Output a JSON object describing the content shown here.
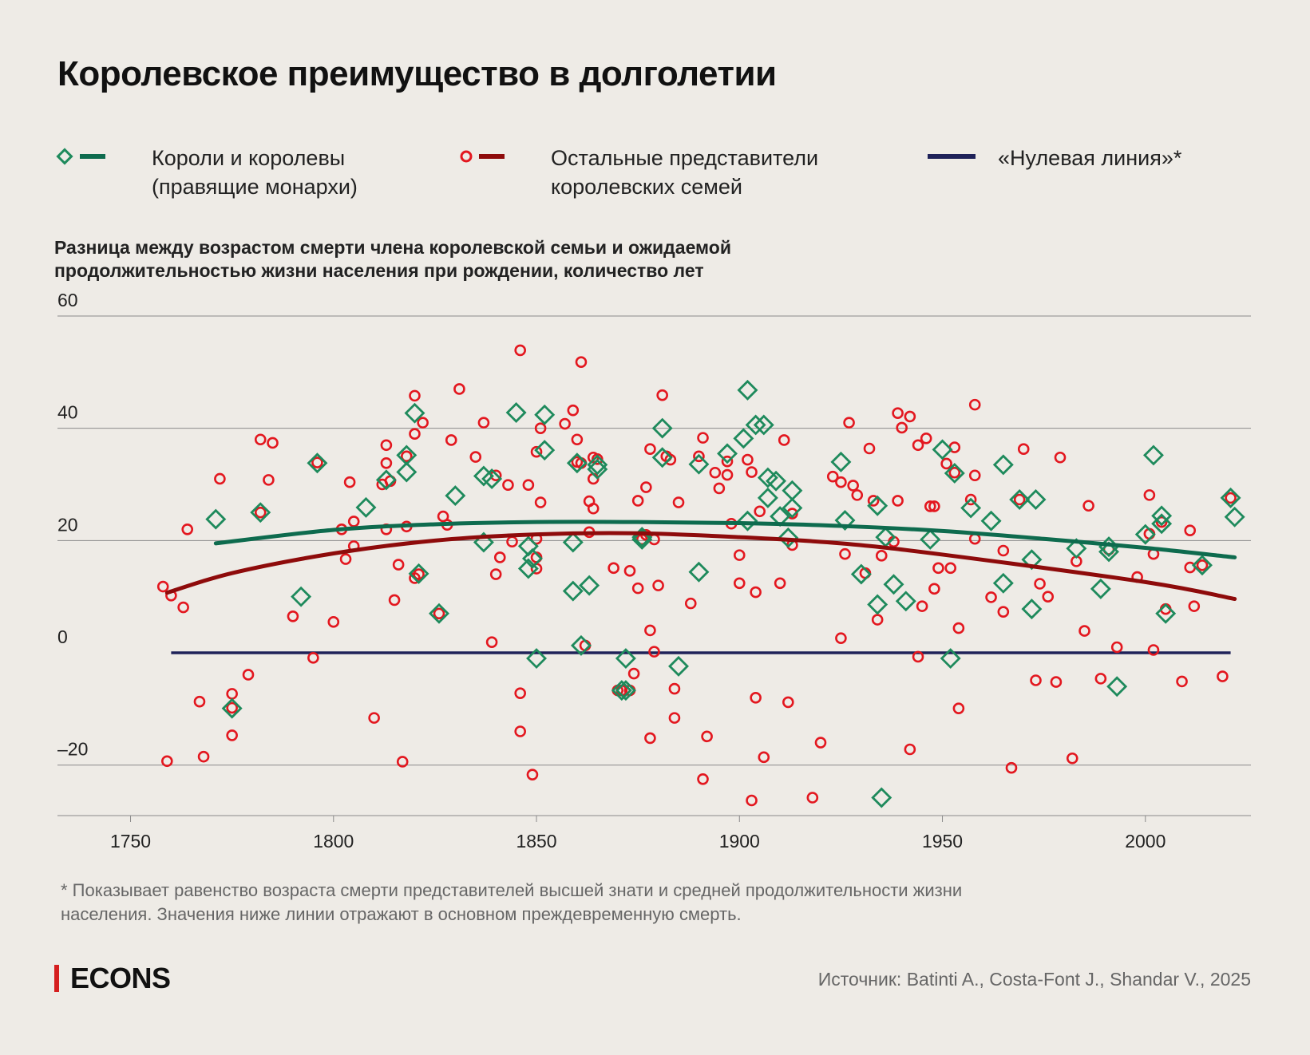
{
  "title": "Королевское преимущество в долголетии",
  "legend": {
    "monarchs": {
      "line1": "Короли и королевы",
      "line2": "(правящие монархи)"
    },
    "others": {
      "line1": "Остальные представители",
      "line2": "королевских семей"
    },
    "zero": {
      "line1": "«Нулевая линия»*"
    }
  },
  "y_axis_title": {
    "line1": "Разница между возрастом смерти члена королевской семьи и ожидаемой",
    "line2": "продолжительностью жизни населения при рождении, количество лет"
  },
  "footnote": {
    "line1": "* Показывает равенство возраста смерти представителей высшей знати и средней продолжительности жизни",
    "line2": "населения. Значения ниже линии отражают в основном преждевременную смерть."
  },
  "brand": "ECONS",
  "source": "Источник: Batinti A., Costa-Font J., Shandar V., 2025",
  "colors": {
    "background": "#eeebe6",
    "monarchs": "#0e6b4e",
    "monarch_marker": "#1e8a5c",
    "others": "#8e0b0b",
    "others_marker": "#e3171f",
    "zero_line": "#1f2259",
    "grid": "#8a8a8a"
  },
  "chart_data": {
    "type": "scatter",
    "xlim": [
      1732,
      2026
    ],
    "ylim": [
      -29,
      60
    ],
    "x_ticks": [
      1750,
      1800,
      1850,
      1900,
      1950,
      2000
    ],
    "y_ticks": [
      60,
      40,
      20,
      0,
      -20
    ],
    "y_tick_labels": [
      "60",
      "40",
      "20",
      "0",
      "–20"
    ],
    "series": [
      {
        "name": "Короли и королевы (правящие монархи)",
        "marker": "diamond",
        "points": [
          [
            1771,
            23.8
          ],
          [
            1775,
            -9.9
          ],
          [
            1782,
            25
          ],
          [
            1796,
            33.8
          ],
          [
            1792,
            10
          ],
          [
            1808,
            25.9
          ],
          [
            1813,
            30.8
          ],
          [
            1818,
            35.2
          ],
          [
            1818,
            32.2
          ],
          [
            1820,
            42.7
          ],
          [
            1821,
            14.1
          ],
          [
            1826,
            7
          ],
          [
            1830,
            28
          ],
          [
            1837,
            19.7
          ],
          [
            1837,
            31.5
          ],
          [
            1839,
            31
          ],
          [
            1845,
            42.8
          ],
          [
            1848,
            19
          ],
          [
            1848,
            15
          ],
          [
            1849,
            16.8
          ],
          [
            1850,
            -1
          ],
          [
            1852,
            42.4
          ],
          [
            1852,
            36.1
          ],
          [
            1859,
            19.7
          ],
          [
            1859,
            11
          ],
          [
            1860,
            33.8
          ],
          [
            1861,
            1.3
          ],
          [
            1863,
            12
          ],
          [
            1865,
            33.5
          ],
          [
            1865,
            32.7
          ],
          [
            1871,
            -6.7
          ],
          [
            1872,
            -6.7
          ],
          [
            1872,
            -1
          ],
          [
            1876,
            20.6
          ],
          [
            1876,
            20.2
          ],
          [
            1881,
            40
          ],
          [
            1881,
            34.8
          ],
          [
            1885,
            -2.4
          ],
          [
            1890,
            33.6
          ],
          [
            1890,
            14.4
          ],
          [
            1897,
            35.5
          ],
          [
            1901,
            38.2
          ],
          [
            1902,
            23.5
          ],
          [
            1902,
            46.8
          ],
          [
            1904,
            40.6
          ],
          [
            1906,
            40.6
          ],
          [
            1907,
            31.2
          ],
          [
            1907,
            27.6
          ],
          [
            1909,
            30.6
          ],
          [
            1910,
            24.3
          ],
          [
            1912,
            20.5
          ],
          [
            1913,
            28.9
          ],
          [
            1913,
            25.8
          ],
          [
            1925,
            34
          ],
          [
            1926,
            23.6
          ],
          [
            1930,
            14
          ],
          [
            1934,
            8.6
          ],
          [
            1934,
            26.2
          ],
          [
            1935,
            -25.8
          ],
          [
            1936,
            20.6
          ],
          [
            1938,
            12.2
          ],
          [
            1941,
            9.2
          ],
          [
            1947,
            20.2
          ],
          [
            1950,
            36.2
          ],
          [
            1953,
            32
          ],
          [
            1952,
            -1
          ],
          [
            1957,
            25.8
          ],
          [
            1962,
            23.5
          ],
          [
            1965,
            33.5
          ],
          [
            1965,
            12.4
          ],
          [
            1969,
            27.3
          ],
          [
            1972,
            16.6
          ],
          [
            1972,
            7.8
          ],
          [
            1973,
            27.3
          ],
          [
            1983,
            18.6
          ],
          [
            1989,
            11.4
          ],
          [
            1991,
            18.9
          ],
          [
            1991,
            18
          ],
          [
            1993,
            -6
          ],
          [
            2000,
            21.1
          ],
          [
            2002,
            35.2
          ],
          [
            2004,
            24.4
          ],
          [
            2004,
            23
          ],
          [
            2005,
            7
          ],
          [
            2014,
            15.6
          ],
          [
            2021,
            27.6
          ],
          [
            2022,
            24.2
          ]
        ]
      },
      {
        "name": "Остальные представители королевских семей",
        "marker": "circle",
        "points": [
          [
            1758,
            11.8
          ],
          [
            1759,
            -19.3
          ],
          [
            1760,
            10.2
          ],
          [
            1763,
            8.1
          ],
          [
            1764,
            22
          ],
          [
            1767,
            -8.7
          ],
          [
            1768,
            -18.5
          ],
          [
            1772,
            31
          ],
          [
            1775,
            -7.3
          ],
          [
            1775,
            -9.8
          ],
          [
            1775,
            -14.7
          ],
          [
            1779,
            -3.9
          ],
          [
            1782,
            38
          ],
          [
            1782,
            25
          ],
          [
            1784,
            30.8
          ],
          [
            1785,
            37.4
          ],
          [
            1790,
            6.5
          ],
          [
            1795,
            -0.9
          ],
          [
            1796,
            33.9
          ],
          [
            1800,
            5.5
          ],
          [
            1802,
            22
          ],
          [
            1803,
            16.7
          ],
          [
            1804,
            30.4
          ],
          [
            1805,
            19
          ],
          [
            1805,
            23.4
          ],
          [
            1810,
            -11.6
          ],
          [
            1812,
            30
          ],
          [
            1813,
            37
          ],
          [
            1813,
            33.8
          ],
          [
            1813,
            22
          ],
          [
            1814,
            30.6
          ],
          [
            1815,
            9.4
          ],
          [
            1816,
            15.7
          ],
          [
            1817,
            -19.4
          ],
          [
            1818,
            35
          ],
          [
            1818,
            22.5
          ],
          [
            1820,
            39
          ],
          [
            1820,
            45.8
          ],
          [
            1820,
            13.3
          ],
          [
            1821,
            14
          ],
          [
            1822,
            41
          ],
          [
            1826,
            7
          ],
          [
            1827,
            24.3
          ],
          [
            1828,
            22.8
          ],
          [
            1829,
            37.9
          ],
          [
            1831,
            47
          ],
          [
            1835,
            34.9
          ],
          [
            1837,
            41
          ],
          [
            1839,
            1.9
          ],
          [
            1840,
            31.6
          ],
          [
            1840,
            14
          ],
          [
            1841,
            17
          ],
          [
            1843,
            29.9
          ],
          [
            1844,
            19.8
          ],
          [
            1846,
            53.9
          ],
          [
            1846,
            -7.2
          ],
          [
            1846,
            -14
          ],
          [
            1848,
            29.9
          ],
          [
            1849,
            -21.7
          ],
          [
            1850,
            17
          ],
          [
            1850,
            15
          ],
          [
            1850,
            35.8
          ],
          [
            1850,
            20.3
          ],
          [
            1851,
            26.8
          ],
          [
            1851,
            40
          ],
          [
            1857,
            40.8
          ],
          [
            1859,
            43.2
          ],
          [
            1860,
            38
          ],
          [
            1860,
            34
          ],
          [
            1861,
            33.8
          ],
          [
            1861,
            51.8
          ],
          [
            1862,
            1.3
          ],
          [
            1863,
            27
          ],
          [
            1863,
            21.5
          ],
          [
            1864,
            31
          ],
          [
            1864,
            34.8
          ],
          [
            1864,
            25.7
          ],
          [
            1865,
            34.5
          ],
          [
            1869,
            15.1
          ],
          [
            1870,
            -6.7
          ],
          [
            1871,
            -6.7
          ],
          [
            1873,
            -6.7
          ],
          [
            1874,
            -3.7
          ],
          [
            1873,
            14.6
          ],
          [
            1875,
            27.1
          ],
          [
            1875,
            11.5
          ],
          [
            1876,
            20.2
          ],
          [
            1877,
            29.5
          ],
          [
            1877,
            21
          ],
          [
            1878,
            36.3
          ],
          [
            1878,
            4
          ],
          [
            1878,
            -15.2
          ],
          [
            1879,
            20.2
          ],
          [
            1879,
            0.2
          ],
          [
            1880,
            12
          ],
          [
            1881,
            45.9
          ],
          [
            1882,
            35
          ],
          [
            1883,
            34.4
          ],
          [
            1884,
            -6.4
          ],
          [
            1884,
            -11.6
          ],
          [
            1885,
            26.8
          ],
          [
            1888,
            8.8
          ],
          [
            1890,
            35
          ],
          [
            1891,
            38.3
          ],
          [
            1891,
            -22.5
          ],
          [
            1892,
            -14.9
          ],
          [
            1894,
            32.1
          ],
          [
            1895,
            29.3
          ],
          [
            1897,
            31.7
          ],
          [
            1897,
            34.1
          ],
          [
            1898,
            23
          ],
          [
            1900,
            12.4
          ],
          [
            1900,
            17.4
          ],
          [
            1902,
            34.4
          ],
          [
            1903,
            32.2
          ],
          [
            1903,
            -26.3
          ],
          [
            1904,
            10.8
          ],
          [
            1904,
            -8
          ],
          [
            1905,
            25.2
          ],
          [
            1906,
            -18.6
          ],
          [
            1910,
            12.4
          ],
          [
            1911,
            37.9
          ],
          [
            1912,
            -8.8
          ],
          [
            1913,
            19.2
          ],
          [
            1913,
            24.8
          ],
          [
            1918,
            -25.8
          ],
          [
            1920,
            -16
          ],
          [
            1923,
            31.4
          ],
          [
            1925,
            2.6
          ],
          [
            1925,
            30.4
          ],
          [
            1926,
            17.6
          ],
          [
            1927,
            41
          ],
          [
            1928,
            29.8
          ],
          [
            1929,
            28.1
          ],
          [
            1931,
            14.2
          ],
          [
            1932,
            36.4
          ],
          [
            1933,
            27.1
          ],
          [
            1934,
            5.9
          ],
          [
            1935,
            17.3
          ],
          [
            1938,
            19.8
          ],
          [
            1939,
            27.1
          ],
          [
            1939,
            42.7
          ],
          [
            1940,
            40.1
          ],
          [
            1942,
            42.1
          ],
          [
            1942,
            -17.2
          ],
          [
            1944,
            -0.7
          ],
          [
            1944,
            37
          ],
          [
            1945,
            8.3
          ],
          [
            1946,
            38.2
          ],
          [
            1947,
            26.1
          ],
          [
            1948,
            11.4
          ],
          [
            1948,
            26.1
          ],
          [
            1949,
            15.1
          ],
          [
            1951,
            33.7
          ],
          [
            1952,
            15.1
          ],
          [
            1953,
            36.6
          ],
          [
            1953,
            32.1
          ],
          [
            1954,
            -9.9
          ],
          [
            1954,
            4.4
          ],
          [
            1957,
            27.3
          ],
          [
            1958,
            44.2
          ],
          [
            1958,
            31.6
          ],
          [
            1958,
            20.3
          ],
          [
            1962,
            9.9
          ],
          [
            1965,
            18.2
          ],
          [
            1965,
            7.3
          ],
          [
            1967,
            -20.5
          ],
          [
            1969,
            27.3
          ],
          [
            1970,
            36.3
          ],
          [
            1973,
            -4.9
          ],
          [
            1974,
            12.3
          ],
          [
            1976,
            10
          ],
          [
            1978,
            -5.2
          ],
          [
            1979,
            34.8
          ],
          [
            1982,
            -18.8
          ],
          [
            1983,
            16.3
          ],
          [
            1985,
            3.9
          ],
          [
            1986,
            26.2
          ],
          [
            1989,
            -4.6
          ],
          [
            1991,
            18.4
          ],
          [
            1993,
            1
          ],
          [
            1998,
            13.5
          ],
          [
            2001,
            28.1
          ],
          [
            2001,
            21.2
          ],
          [
            2002,
            17.6
          ],
          [
            2002,
            0.5
          ],
          [
            2004,
            23.3
          ],
          [
            2005,
            7.8
          ],
          [
            2009,
            -5.1
          ],
          [
            2011,
            21.8
          ],
          [
            2011,
            15.2
          ],
          [
            2012,
            8.3
          ],
          [
            2014,
            15.6
          ],
          [
            2019,
            -4.2
          ],
          [
            2021,
            27.6
          ]
        ]
      },
      {
        "name": "Короли и королевы — тренд",
        "type": "line",
        "x": [
          1771,
          1800,
          1825,
          1850,
          1875,
          1900,
          1925,
          1950,
          1975,
          2000,
          2022
        ],
        "values": [
          19.5,
          21.9,
          22.9,
          23.3,
          23.3,
          23.1,
          22.6,
          21.7,
          20.3,
          18.7,
          17
        ]
      },
      {
        "name": "Остальные представители — тренд",
        "type": "line",
        "x": [
          1759,
          1775,
          1800,
          1825,
          1850,
          1875,
          1900,
          1925,
          1950,
          2000,
          2022
        ],
        "values": [
          10.7,
          14.2,
          17.7,
          20,
          21.1,
          21.3,
          20.6,
          19.5,
          17.5,
          12.6,
          9.6
        ]
      },
      {
        "name": "«Нулевая линия»",
        "type": "line",
        "x": [
          1760,
          2021
        ],
        "values": [
          0,
          0
        ]
      }
    ]
  }
}
